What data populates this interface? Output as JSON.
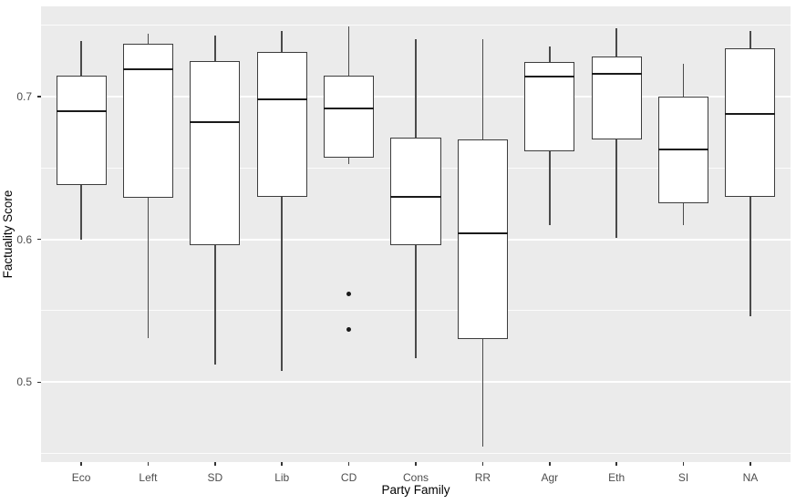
{
  "chart_data": {
    "type": "boxplot",
    "title": "",
    "xlabel": "Party Family",
    "ylabel": "Factuality Score",
    "categories": [
      "Eco",
      "Left",
      "SD",
      "Lib",
      "CD",
      "Cons",
      "RR",
      "Agr",
      "Eth",
      "SI",
      "NA"
    ],
    "series": [
      {
        "name": "Eco",
        "whisker_low": 0.6,
        "q1": 0.638,
        "median": 0.69,
        "q3": 0.715,
        "whisker_high": 0.739,
        "outliers": []
      },
      {
        "name": "Left",
        "whisker_low": 0.531,
        "q1": 0.629,
        "median": 0.719,
        "q3": 0.737,
        "whisker_high": 0.744,
        "outliers": []
      },
      {
        "name": "SD",
        "whisker_low": 0.512,
        "q1": 0.596,
        "median": 0.682,
        "q3": 0.725,
        "whisker_high": 0.743,
        "outliers": []
      },
      {
        "name": "Lib",
        "whisker_low": 0.508,
        "q1": 0.63,
        "median": 0.698,
        "q3": 0.731,
        "whisker_high": 0.746,
        "outliers": []
      },
      {
        "name": "CD",
        "whisker_low": 0.653,
        "q1": 0.657,
        "median": 0.692,
        "q3": 0.715,
        "whisker_high": 0.749,
        "outliers": [
          0.562,
          0.537
        ]
      },
      {
        "name": "Cons",
        "whisker_low": 0.517,
        "q1": 0.596,
        "median": 0.63,
        "q3": 0.671,
        "whisker_high": 0.74,
        "outliers": []
      },
      {
        "name": "RR",
        "whisker_low": 0.455,
        "q1": 0.53,
        "median": 0.604,
        "q3": 0.67,
        "whisker_high": 0.74,
        "outliers": []
      },
      {
        "name": "Agr",
        "whisker_low": 0.61,
        "q1": 0.662,
        "median": 0.714,
        "q3": 0.724,
        "whisker_high": 0.735,
        "outliers": []
      },
      {
        "name": "Eth",
        "whisker_low": 0.601,
        "q1": 0.67,
        "median": 0.716,
        "q3": 0.728,
        "whisker_high": 0.748,
        "outliers": []
      },
      {
        "name": "SI",
        "whisker_low": 0.61,
        "q1": 0.625,
        "median": 0.663,
        "q3": 0.7,
        "whisker_high": 0.723,
        "outliers": []
      },
      {
        "name": "NA",
        "whisker_low": 0.546,
        "q1": 0.63,
        "median": 0.688,
        "q3": 0.734,
        "whisker_high": 0.746,
        "outliers": []
      }
    ],
    "y_ticks": [
      {
        "label": "0.5",
        "value": 0.5
      },
      {
        "label": "0.6",
        "value": 0.6
      },
      {
        "label": "0.7",
        "value": 0.7
      }
    ],
    "y_minor_gridlines": [
      0.45,
      0.55,
      0.65,
      0.75
    ],
    "ylim": [
      0.444,
      0.7632
    ],
    "grid": "major-and-minor-horizontal",
    "legend": "none",
    "box_width_fraction": 0.75,
    "colors": {
      "panel_bg": "#EBEBEB",
      "gridline": "#FFFFFF",
      "box_fill": "#FFFFFF",
      "box_border": "#3C3C3C",
      "median_line": "#1A1A1A",
      "outlier_point": "#1A1A1A",
      "tick_label": "#4D4D4D",
      "axis_title": "#000000"
    }
  }
}
